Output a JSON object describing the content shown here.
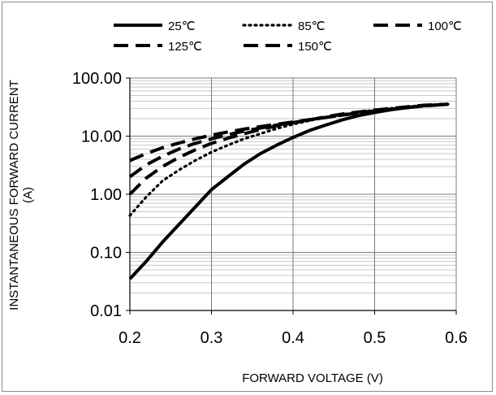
{
  "chart_data": {
    "type": "line",
    "title": "",
    "xlabel": "FORWARD VOLTAGE (V)",
    "ylabel": "INSTANTANEOUS FORWARD CURRENT (A)",
    "ylabel_lines": [
      "INSTANTANEOUS FORWARD CURRENT",
      "(A)"
    ],
    "xlim": [
      0.2,
      0.6
    ],
    "ylim": [
      0.01,
      100
    ],
    "yscale": "log",
    "x_ticks": [
      "0.2",
      "0.3",
      "0.4",
      "0.5",
      "0.6"
    ],
    "y_ticks": [
      "0.01",
      "0.10",
      "1.00",
      "10.00",
      "100.00"
    ],
    "grid": "horizontal major and minor (log)",
    "legend_position": "top",
    "series": [
      {
        "name": "25℃",
        "dash": "solid",
        "points": [
          [
            0.2,
            0.035
          ],
          [
            0.22,
            0.07
          ],
          [
            0.24,
            0.15
          ],
          [
            0.26,
            0.3
          ],
          [
            0.28,
            0.6
          ],
          [
            0.3,
            1.2
          ],
          [
            0.32,
            2.0
          ],
          [
            0.34,
            3.3
          ],
          [
            0.36,
            5.0
          ],
          [
            0.38,
            7.0
          ],
          [
            0.4,
            9.5
          ],
          [
            0.42,
            12.5
          ],
          [
            0.44,
            15.5
          ],
          [
            0.46,
            19
          ],
          [
            0.48,
            22.5
          ],
          [
            0.5,
            25.5
          ],
          [
            0.52,
            28.5
          ],
          [
            0.54,
            31
          ],
          [
            0.56,
            33.5
          ],
          [
            0.59,
            35.5
          ]
        ]
      },
      {
        "name": "85℃",
        "dash": "dotted",
        "points": [
          [
            0.2,
            0.43
          ],
          [
            0.22,
            0.9
          ],
          [
            0.24,
            1.7
          ],
          [
            0.26,
            2.6
          ],
          [
            0.28,
            3.8
          ],
          [
            0.3,
            5.3
          ],
          [
            0.32,
            7.0
          ],
          [
            0.34,
            9.0
          ],
          [
            0.36,
            11
          ],
          [
            0.38,
            13.5
          ],
          [
            0.4,
            16
          ],
          [
            0.42,
            18.5
          ],
          [
            0.44,
            21
          ],
          [
            0.46,
            23.5
          ],
          [
            0.48,
            26
          ],
          [
            0.5,
            28
          ],
          [
            0.52,
            30
          ],
          [
            0.54,
            32
          ],
          [
            0.56,
            34
          ],
          [
            0.59,
            35.5
          ]
        ]
      },
      {
        "name": "100℃",
        "dash": "dashed",
        "points": [
          [
            0.2,
            1.0
          ],
          [
            0.22,
            1.9
          ],
          [
            0.24,
            3.0
          ],
          [
            0.26,
            4.3
          ],
          [
            0.28,
            5.8
          ],
          [
            0.3,
            7.5
          ],
          [
            0.32,
            9.2
          ],
          [
            0.34,
            11
          ],
          [
            0.36,
            13
          ],
          [
            0.38,
            15
          ],
          [
            0.4,
            17
          ],
          [
            0.42,
            19
          ],
          [
            0.44,
            21.5
          ],
          [
            0.46,
            24
          ],
          [
            0.48,
            26
          ],
          [
            0.5,
            28
          ],
          [
            0.52,
            30
          ],
          [
            0.54,
            32
          ],
          [
            0.56,
            34
          ],
          [
            0.59,
            35.5
          ]
        ]
      },
      {
        "name": "125℃",
        "dash": "dashed",
        "points": [
          [
            0.2,
            2.0
          ],
          [
            0.22,
            3.2
          ],
          [
            0.24,
            4.5
          ],
          [
            0.26,
            6.0
          ],
          [
            0.28,
            7.5
          ],
          [
            0.3,
            9.0
          ],
          [
            0.32,
            10.6
          ],
          [
            0.34,
            12.2
          ],
          [
            0.36,
            13.8
          ],
          [
            0.38,
            15.5
          ],
          [
            0.4,
            17.2
          ],
          [
            0.42,
            19
          ],
          [
            0.44,
            21
          ],
          [
            0.46,
            23
          ],
          [
            0.48,
            25
          ],
          [
            0.5,
            27
          ],
          [
            0.52,
            29
          ],
          [
            0.54,
            31
          ],
          [
            0.56,
            33
          ],
          [
            0.59,
            35.5
          ]
        ]
      },
      {
        "name": "150℃",
        "dash": "dashed",
        "points": [
          [
            0.2,
            3.8
          ],
          [
            0.22,
            5.0
          ],
          [
            0.24,
            6.3
          ],
          [
            0.26,
            7.6
          ],
          [
            0.28,
            9.0
          ],
          [
            0.3,
            10.4
          ],
          [
            0.32,
            11.8
          ],
          [
            0.34,
            13.2
          ],
          [
            0.36,
            14.6
          ],
          [
            0.38,
            16
          ],
          [
            0.4,
            17.5
          ],
          [
            0.42,
            19.2
          ],
          [
            0.44,
            21
          ],
          [
            0.46,
            23
          ],
          [
            0.48,
            25
          ],
          [
            0.5,
            27
          ],
          [
            0.52,
            29
          ],
          [
            0.54,
            31
          ],
          [
            0.56,
            33
          ],
          [
            0.59,
            35.5
          ]
        ]
      }
    ]
  }
}
